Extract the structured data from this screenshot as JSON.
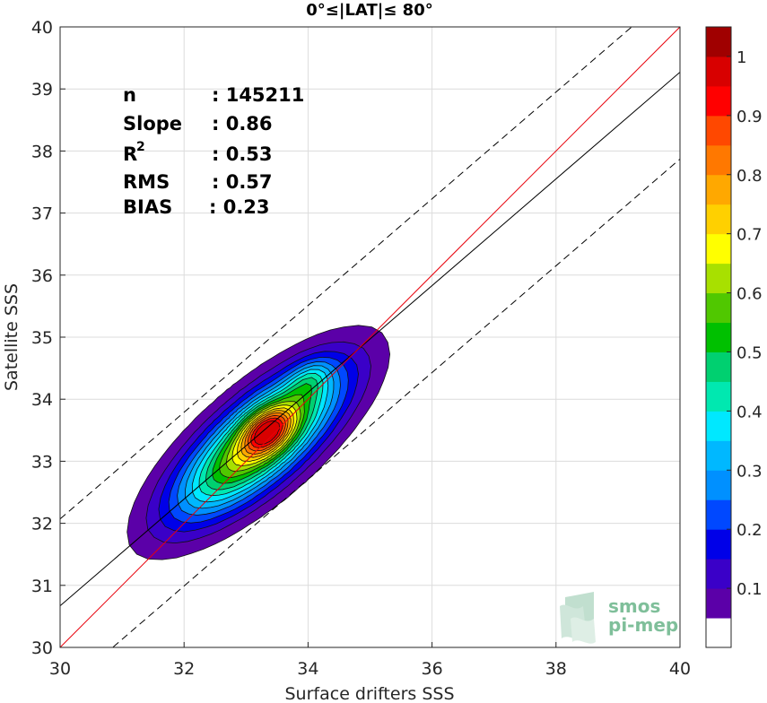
{
  "chart_data": {
    "type": "contour",
    "title": "0°≤|LAT|≤ 80°",
    "xlabel": "Surface drifters SSS",
    "ylabel": "Satellite SSS",
    "xlim": [
      30,
      40
    ],
    "ylim": [
      30,
      40
    ],
    "xticks": [
      "30",
      "32",
      "34",
      "36",
      "38",
      "40"
    ],
    "yticks": [
      "30",
      "31",
      "32",
      "33",
      "34",
      "35",
      "36",
      "37",
      "38",
      "39",
      "40"
    ],
    "grid": true,
    "stats": [
      {
        "label": "n",
        "value": ": 145211"
      },
      {
        "label": "Slope",
        "value": ": 0.86"
      },
      {
        "label": "R",
        "sup": "2",
        "value": ": 0.53"
      },
      {
        "label": "RMS",
        "value": ": 0.57"
      },
      {
        "label": "BIAS",
        "value": ": 0.23"
      }
    ],
    "lines": {
      "one_to_one": {
        "color": "#e8000b",
        "x": [
          30,
          40
        ],
        "y": [
          30,
          40
        ]
      },
      "regression": {
        "color": "#000000",
        "x": [
          30,
          40
        ],
        "y": [
          30.67,
          39.27
        ]
      },
      "upper_bound": {
        "color": "#000000",
        "style": "dashed",
        "x": [
          30,
          40
        ],
        "y": [
          32.07,
          40.67
        ]
      },
      "lower_bound": {
        "color": "#000000",
        "style": "dashed",
        "x": [
          30,
          40
        ],
        "y": [
          29.27,
          37.87
        ]
      }
    },
    "density_peaks": [
      {
        "x": 33.35,
        "y": 33.5,
        "level": 1.0
      },
      {
        "x": 34.0,
        "y": 34.3,
        "level": 0.5
      }
    ],
    "colorbar": {
      "ticks": [
        "0.1",
        "0.2",
        "0.3",
        "0.4",
        "0.5",
        "0.6",
        "0.7",
        "0.8",
        "0.9",
        "1"
      ],
      "colors": [
        "#ffffff",
        "#5b00a8",
        "#3a00c8",
        "#0000e8",
        "#0048ff",
        "#0090ff",
        "#00b8ff",
        "#00e8ff",
        "#00e8b0",
        "#00d070",
        "#00c000",
        "#50c800",
        "#a8e000",
        "#ffff00",
        "#ffd000",
        "#ffa800",
        "#ff7800",
        "#ff4800",
        "#ff0000",
        "#d80000",
        "#a00000"
      ]
    }
  },
  "watermark": {
    "line1": "smos",
    "line2": "pi-mep"
  }
}
